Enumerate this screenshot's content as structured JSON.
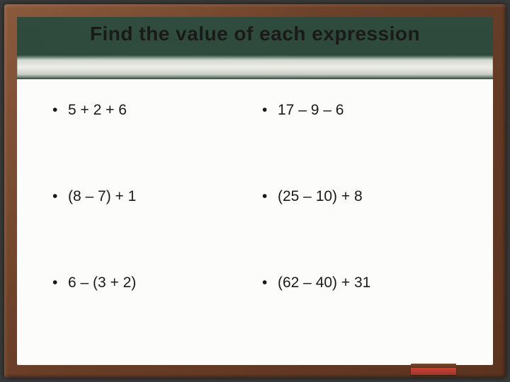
{
  "title": "Find the value of each expression",
  "bullet_glyph": "•",
  "colors": {
    "frame": "#6b3f28",
    "board": "#2d4a3c",
    "paper": "#fcfcfa",
    "text": "#1a1a1a",
    "eraser_top": "#5a3420",
    "eraser_body": "#c44536"
  },
  "typography": {
    "title_fontsize": 28,
    "title_weight": "bold",
    "body_fontsize": 21,
    "font_family": "Comic Sans MS"
  },
  "layout": {
    "columns": 2,
    "rows": 3
  },
  "expressions": {
    "r1c1": "5 + 2 + 6",
    "r1c2": "17 – 9 – 6",
    "r2c1": "(8 – 7) + 1",
    "r2c2": "(25 – 10) + 8",
    "r3c1": "6 – (3 + 2)",
    "r3c2": "(62 – 40) + 31"
  }
}
